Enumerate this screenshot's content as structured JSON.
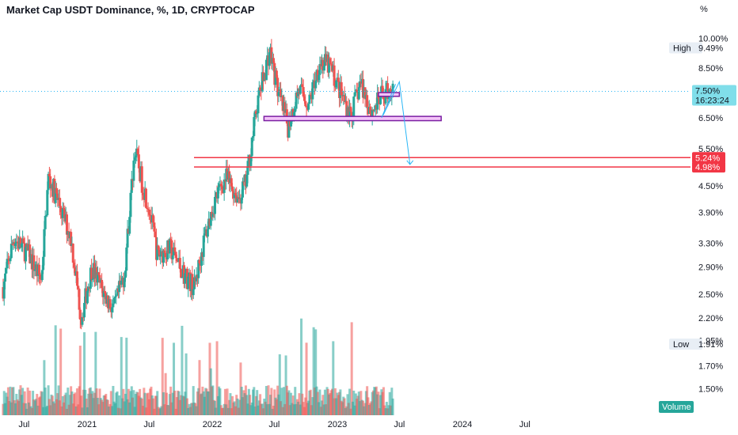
{
  "chart_data": {
    "type": "candlestick",
    "title": "Market Cap USDT Dominance, %, 1D, CRYPTOCAP",
    "unit_label": "%",
    "y_scale": "log",
    "ylim": [
      1.3,
      11.0
    ],
    "y_ticks": [
      "10.00%",
      "8.50%",
      "6.50%",
      "5.50%",
      "4.50%",
      "3.90%",
      "3.30%",
      "2.90%",
      "2.50%",
      "2.20%",
      "1.95%",
      "1.70%",
      "1.50%"
    ],
    "y_tick_values": [
      10.0,
      8.5,
      6.5,
      5.5,
      4.5,
      3.9,
      3.3,
      2.9,
      2.5,
      2.2,
      1.95,
      1.7,
      1.5
    ],
    "x_ticks": [
      "Jul",
      "2021",
      "Jul",
      "2022",
      "Jul",
      "2023",
      "Jul",
      "2024",
      "Jul"
    ],
    "x_tick_dates": [
      "2020-07-01",
      "2021-01-01",
      "2021-07-01",
      "2022-01-01",
      "2022-07-01",
      "2023-01-01",
      "2023-07-01",
      "2024-01-01",
      "2024-07-01"
    ],
    "price_path": [
      {
        "date": "2020-05-01",
        "value": 2.6
      },
      {
        "date": "2020-06-01",
        "value": 3.4
      },
      {
        "date": "2020-07-15",
        "value": 3.1
      },
      {
        "date": "2020-08-20",
        "value": 2.7
      },
      {
        "date": "2020-09-10",
        "value": 4.7
      },
      {
        "date": "2020-10-01",
        "value": 4.3
      },
      {
        "date": "2020-11-15",
        "value": 3.4
      },
      {
        "date": "2020-12-15",
        "value": 2.2
      },
      {
        "date": "2021-01-15",
        "value": 2.9
      },
      {
        "date": "2021-02-20",
        "value": 2.5
      },
      {
        "date": "2021-03-20",
        "value": 2.3
      },
      {
        "date": "2021-04-20",
        "value": 2.8
      },
      {
        "date": "2021-05-20",
        "value": 5.5
      },
      {
        "date": "2021-06-10",
        "value": 4.6
      },
      {
        "date": "2021-07-01",
        "value": 4.0
      },
      {
        "date": "2021-07-25",
        "value": 3.1
      },
      {
        "date": "2021-09-01",
        "value": 3.2
      },
      {
        "date": "2021-10-10",
        "value": 2.8
      },
      {
        "date": "2021-11-10",
        "value": 2.6
      },
      {
        "date": "2021-12-10",
        "value": 3.4
      },
      {
        "date": "2022-01-10",
        "value": 4.2
      },
      {
        "date": "2022-02-10",
        "value": 4.7
      },
      {
        "date": "2022-03-20",
        "value": 4.2
      },
      {
        "date": "2022-04-10",
        "value": 4.6
      },
      {
        "date": "2022-05-12",
        "value": 7.0
      },
      {
        "date": "2022-06-18",
        "value": 9.4
      },
      {
        "date": "2022-07-15",
        "value": 7.3
      },
      {
        "date": "2022-08-10",
        "value": 6.2
      },
      {
        "date": "2022-09-10",
        "value": 7.6
      },
      {
        "date": "2022-10-10",
        "value": 7.0
      },
      {
        "date": "2022-11-10",
        "value": 8.8
      },
      {
        "date": "2022-12-10",
        "value": 8.6
      },
      {
        "date": "2023-01-15",
        "value": 7.3
      },
      {
        "date": "2023-02-10",
        "value": 6.6
      },
      {
        "date": "2023-03-10",
        "value": 7.9
      },
      {
        "date": "2023-04-10",
        "value": 6.7
      },
      {
        "date": "2023-05-10",
        "value": 7.3
      },
      {
        "date": "2023-06-05",
        "value": 7.6
      },
      {
        "date": "2023-06-12",
        "value": 7.5
      }
    ],
    "annotations": {
      "support_lines": [
        {
          "label": "5.24%",
          "value": 5.24
        },
        {
          "label": "4.98%",
          "value": 4.98
        }
      ],
      "zones": [
        {
          "from_date": "2022-06-01",
          "to_date": "2023-10-31",
          "low": 6.4,
          "high": 6.55
        },
        {
          "from_date": "2023-05-01",
          "to_date": "2023-07-01",
          "low": 7.3,
          "high": 7.45
        }
      ],
      "projection_arrow": [
        {
          "date": "2023-05-15",
          "value": 6.6
        },
        {
          "date": "2023-07-01",
          "value": 7.9
        },
        {
          "date": "2023-08-01",
          "value": 5.05
        }
      ],
      "wedge": [
        {
          "date": "2023-05-10",
          "value": 6.5
        },
        {
          "date": "2023-06-20",
          "value": 7.8
        }
      ]
    },
    "current_price": {
      "label": "7.50%",
      "value": 7.5,
      "countdown": "16:23:24"
    },
    "high": {
      "label": "High",
      "value_label": "9.49%"
    },
    "low": {
      "label": "Low",
      "value_label": "1.91%"
    },
    "volume_label": "Volume",
    "colors": {
      "up": "#26a69a",
      "down": "#ef5350",
      "price_tag": "#80deea",
      "support": "#f23645",
      "zone_fill": "#f3c3f8",
      "zone_border": "#7b1fa2",
      "arrow": "#29b6f6"
    }
  }
}
